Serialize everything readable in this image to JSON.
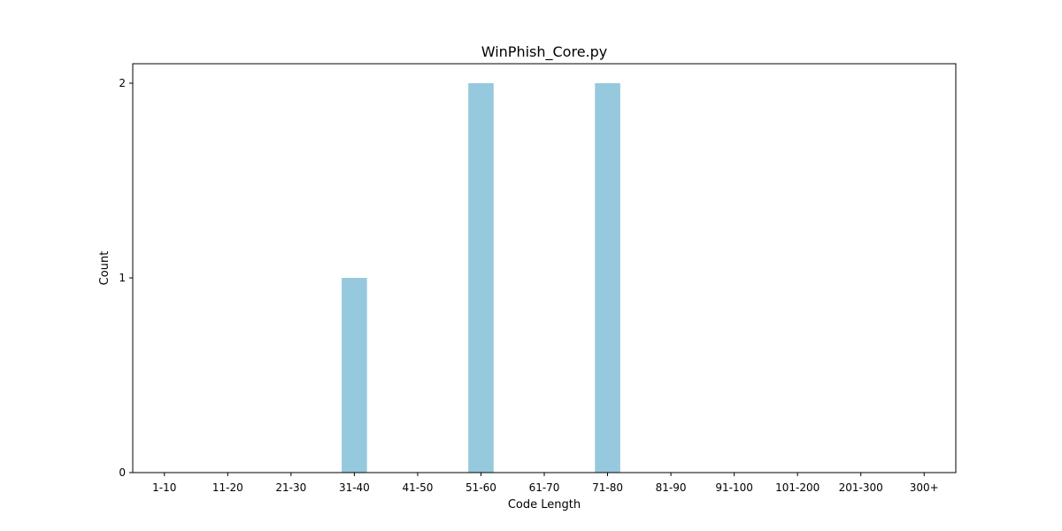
{
  "chart_data": {
    "type": "bar",
    "title": "WinPhish_Core.py",
    "xlabel": "Code Length",
    "ylabel": "Count",
    "categories": [
      "1-10",
      "11-20",
      "21-30",
      "31-40",
      "41-50",
      "51-60",
      "61-70",
      "71-80",
      "81-90",
      "91-100",
      "101-200",
      "201-300",
      "300+"
    ],
    "values": [
      0,
      0,
      0,
      1,
      0,
      2,
      0,
      2,
      0,
      0,
      0,
      0,
      0
    ],
    "ylim": [
      0,
      2.1
    ],
    "yticks": [
      0,
      1,
      2
    ],
    "bar_color": "#96c9de",
    "grid": false,
    "legend": "none"
  }
}
